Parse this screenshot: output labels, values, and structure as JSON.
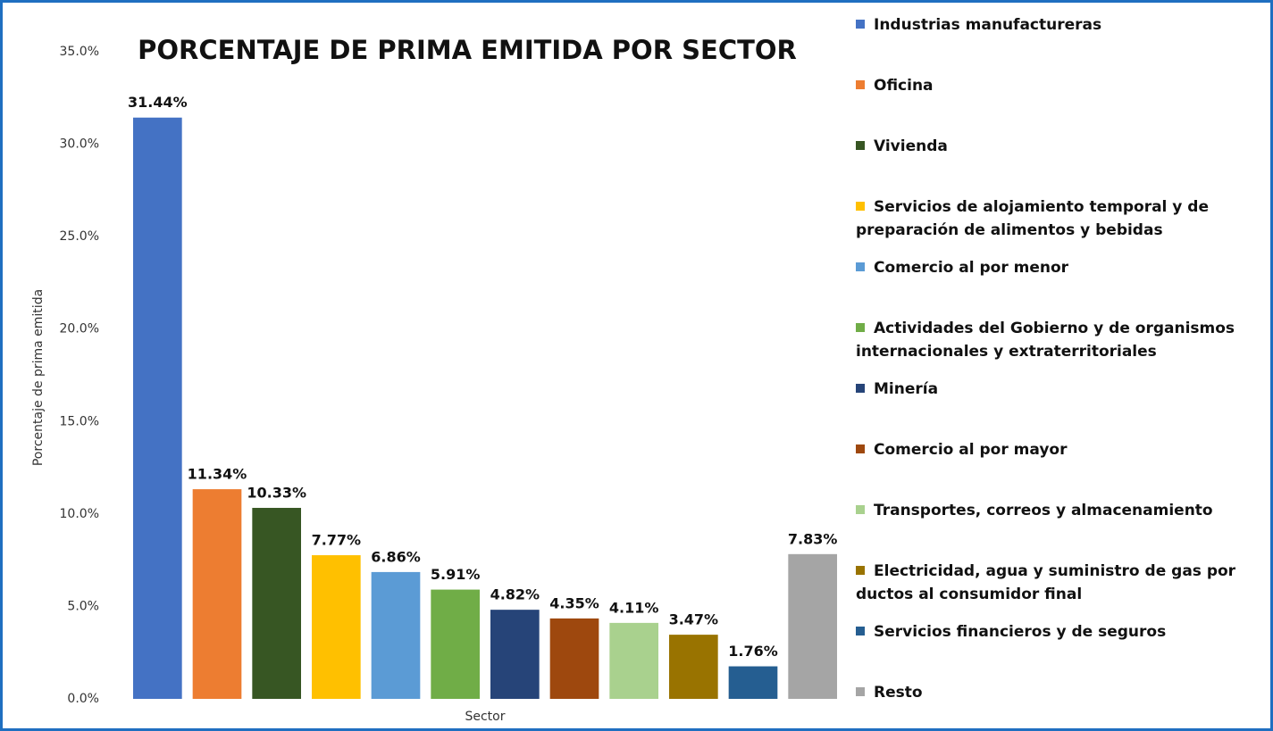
{
  "chart_data": {
    "type": "bar",
    "title": "PORCENTAJE DE PRIMA EMITIDA POR SECTOR",
    "y_label": "Porcentaje de prima emitida",
    "x_label": "Sector",
    "categories": [
      "Industrias manufactureras",
      "Oficina",
      "Vivienda",
      "Servicios de alojamiento temporal y de preparación de alimentos y bebidas",
      "Comercio al por menor",
      "Actividades del Gobierno y de organismos internacionales y extraterritoriales",
      "Minería",
      "Comercio al por mayor",
      "Transportes, correos y almacenamiento",
      "Electricidad, agua y suministro de gas por ductos al consumidor final",
      "Servicios financieros y de seguros",
      "Resto"
    ],
    "values": [
      31.44,
      11.34,
      10.33,
      7.77,
      6.86,
      5.91,
      4.82,
      4.35,
      4.11,
      3.47,
      1.76,
      7.83
    ],
    "value_labels": [
      "31.44%",
      "11.34%",
      "10.33%",
      "7.77%",
      "6.86%",
      "5.91%",
      "4.82%",
      "4.35%",
      "4.11%",
      "3.47%",
      "1.76%",
      "7.83%"
    ],
    "colors": [
      "#4472c4",
      "#ed7d31",
      "#375623",
      "#ffc000",
      "#5b9bd5",
      "#70ad47",
      "#264478",
      "#9e480e",
      "#a9d18e",
      "#997300",
      "#255e91",
      "#a5a5a5"
    ],
    "ylim": [
      0,
      35
    ],
    "yticks": [
      {
        "value": 0,
        "label": "0.0%"
      },
      {
        "value": 5,
        "label": "5.0%"
      },
      {
        "value": 10,
        "label": "10.0%"
      },
      {
        "value": 15,
        "label": "15.0%"
      },
      {
        "value": 20,
        "label": "20.0%"
      },
      {
        "value": 25,
        "label": "25.0%"
      },
      {
        "value": 30,
        "label": "30.0%"
      },
      {
        "value": 35,
        "label": "35.0%"
      }
    ],
    "legend": "right"
  }
}
